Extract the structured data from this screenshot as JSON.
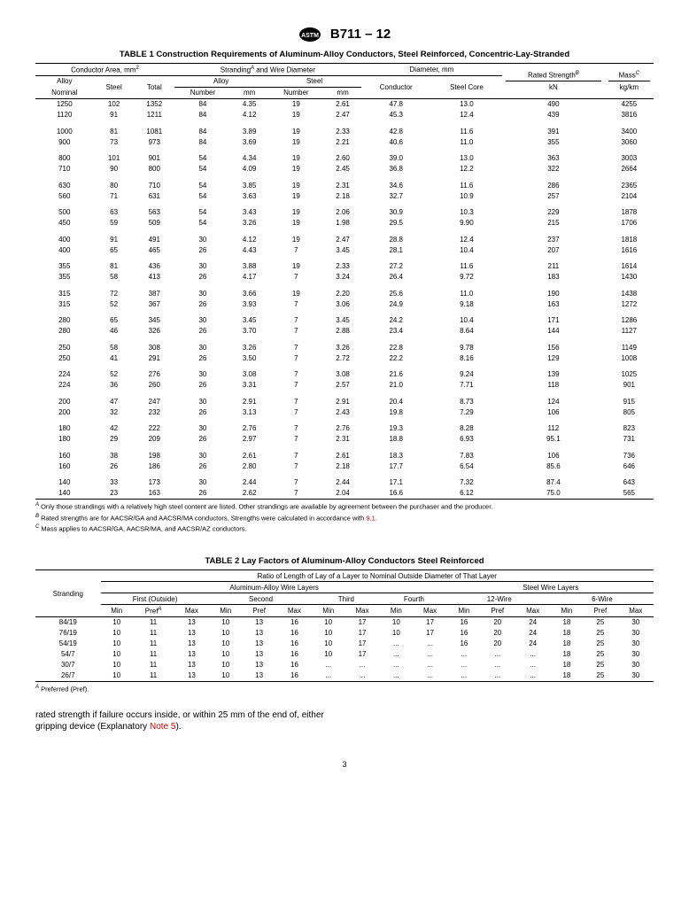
{
  "header": {
    "std": "B711 – 12"
  },
  "t1": {
    "title": "TABLE 1 Construction Requirements of Aluminum-Alloy Conductors, Steel Reinforced, Concentric-Lay-Stranded",
    "h": {
      "ca": "Conductor Area, mm",
      "swd": "Stranding",
      "swd2": " and Wire Diameter",
      "dia": "Diameter, mm",
      "rs": "Rated Strength",
      "mass": "Mass",
      "alloy": "Alloy",
      "steel": "Steel",
      "total": "Total",
      "nom": "Nominal",
      "num": "Number",
      "mm": "mm",
      "cond": "Conductor",
      "sc": "Steel Core",
      "kn": "kN",
      "kgkm": "kg/km"
    },
    "groups": [
      [
        [
          "1250",
          "102",
          "1352",
          "84",
          "4.35",
          "19",
          "2.61",
          "47.8",
          "13.0",
          "490",
          "4255"
        ],
        [
          "1120",
          "91",
          "1211",
          "84",
          "4.12",
          "19",
          "2.47",
          "45.3",
          "12.4",
          "439",
          "3816"
        ]
      ],
      [
        [
          "1000",
          "81",
          "1081",
          "84",
          "3.89",
          "19",
          "2.33",
          "42.8",
          "11.6",
          "391",
          "3400"
        ],
        [
          "900",
          "73",
          "973",
          "84",
          "3.69",
          "19",
          "2.21",
          "40.6",
          "11.0",
          "355",
          "3060"
        ]
      ],
      [
        [
          "800",
          "101",
          "901",
          "54",
          "4.34",
          "19",
          "2.60",
          "39.0",
          "13.0",
          "363",
          "3003"
        ],
        [
          "710",
          "90",
          "800",
          "54",
          "4.09",
          "19",
          "2.45",
          "36.8",
          "12.2",
          "322",
          "2664"
        ]
      ],
      [
        [
          "630",
          "80",
          "710",
          "54",
          "3.85",
          "19",
          "2.31",
          "34.6",
          "11.6",
          "286",
          "2365"
        ],
        [
          "560",
          "71",
          "631",
          "54",
          "3.63",
          "19",
          "2.18",
          "32.7",
          "10.9",
          "257",
          "2104"
        ]
      ],
      [
        [
          "500",
          "63",
          "563",
          "54",
          "3.43",
          "19",
          "2.06",
          "30.9",
          "10.3",
          "229",
          "1878"
        ],
        [
          "450",
          "59",
          "509",
          "54",
          "3.26",
          "19",
          "1.98",
          "29.5",
          "9.90",
          "215",
          "1706"
        ]
      ],
      [
        [
          "400",
          "91",
          "491",
          "30",
          "4.12",
          "19",
          "2.47",
          "28.8",
          "12.4",
          "237",
          "1818"
        ],
        [
          "400",
          "65",
          "465",
          "26",
          "4.43",
          "7",
          "3.45",
          "28.1",
          "10.4",
          "207",
          "1616"
        ]
      ],
      [
        [
          "355",
          "81",
          "436",
          "30",
          "3.88",
          "19",
          "2.33",
          "27.2",
          "11.6",
          "211",
          "1614"
        ],
        [
          "355",
          "58",
          "413",
          "26",
          "4.17",
          "7",
          "3.24",
          "26.4",
          "9.72",
          "183",
          "1430"
        ]
      ],
      [
        [
          "315",
          "72",
          "387",
          "30",
          "3.66",
          "19",
          "2.20",
          "25.6",
          "11.0",
          "190",
          "1438"
        ],
        [
          "315",
          "52",
          "367",
          "26",
          "3.93",
          "7",
          "3.06",
          "24.9",
          "9.18",
          "163",
          "1272"
        ]
      ],
      [
        [
          "280",
          "65",
          "345",
          "30",
          "3.45",
          "7",
          "3.45",
          "24.2",
          "10.4",
          "171",
          "1286"
        ],
        [
          "280",
          "46",
          "326",
          "26",
          "3.70",
          "7",
          "2.88",
          "23.4",
          "8.64",
          "144",
          "1127"
        ]
      ],
      [
        [
          "250",
          "58",
          "308",
          "30",
          "3.26",
          "7",
          "3.26",
          "22.8",
          "9.78",
          "156",
          "1149"
        ],
        [
          "250",
          "41",
          "291",
          "26",
          "3.50",
          "7",
          "2.72",
          "22.2",
          "8.16",
          "129",
          "1008"
        ]
      ],
      [
        [
          "224",
          "52",
          "276",
          "30",
          "3.08",
          "7",
          "3.08",
          "21.6",
          "9.24",
          "139",
          "1025"
        ],
        [
          "224",
          "36",
          "260",
          "26",
          "3.31",
          "7",
          "2.57",
          "21.0",
          "7.71",
          "118",
          "901"
        ]
      ],
      [
        [
          "200",
          "47",
          "247",
          "30",
          "2.91",
          "7",
          "2.91",
          "20.4",
          "8.73",
          "124",
          "915"
        ],
        [
          "200",
          "32",
          "232",
          "26",
          "3.13",
          "7",
          "2.43",
          "19.8",
          "7.29",
          "106",
          "805"
        ]
      ],
      [
        [
          "180",
          "42",
          "222",
          "30",
          "2.76",
          "7",
          "2.76",
          "19.3",
          "8.28",
          "112",
          "823"
        ],
        [
          "180",
          "29",
          "209",
          "26",
          "2.97",
          "7",
          "2.31",
          "18.8",
          "6.93",
          "95.1",
          "731"
        ]
      ],
      [
        [
          "160",
          "38",
          "198",
          "30",
          "2.61",
          "7",
          "2.61",
          "18.3",
          "7.83",
          "106",
          "736"
        ],
        [
          "160",
          "26",
          "186",
          "26",
          "2.80",
          "7",
          "2.18",
          "17.7",
          "6.54",
          "85.6",
          "646"
        ]
      ],
      [
        [
          "140",
          "33",
          "173",
          "30",
          "2.44",
          "7",
          "2.44",
          "17.1",
          "7.32",
          "87.4",
          "643"
        ],
        [
          "140",
          "23",
          "163",
          "26",
          "2.62",
          "7",
          "2.04",
          "16.6",
          "6.12",
          "75.0",
          "565"
        ]
      ]
    ],
    "fn": {
      "a": " Only those strandings with a relatively high steel content are listed. Other strandings are available by agreement between the purchaser and the producer.",
      "b": " Rated strengths are for AACSR/GA and AACSR/MA conductors. Strengths were calculated in accordance with ",
      "bref": "9.1",
      "bend": ".",
      "c": " Mass applies to AACSR/GA, AACSR/MA, and AACSR/AZ conductors."
    }
  },
  "t2": {
    "title": "TABLE 2 Lay Factors of Aluminum-Alloy Conductors Steel Reinforced",
    "h": {
      "str": "Stranding",
      "ratio": "Ratio of Length of Lay of a Layer to Nominal Outside Diameter of That Layer",
      "aawl": "Aluminum-Alloy Wire Layers",
      "swl": "Steel Wire Layers",
      "first": "First (Outside)",
      "second": "Second",
      "third": "Third",
      "fourth": "Fourth",
      "w12": "12-Wire",
      "w6": "6-Wire",
      "min": "Min",
      "pref": "Pref",
      "max": "Max"
    },
    "rows": [
      [
        "84/19",
        "10",
        "11",
        "13",
        "10",
        "13",
        "16",
        "10",
        "17",
        "10",
        "17",
        "16",
        "20",
        "24",
        "18",
        "25",
        "30"
      ],
      [
        "76/19",
        "10",
        "11",
        "13",
        "10",
        "13",
        "16",
        "10",
        "17",
        "10",
        "17",
        "16",
        "20",
        "24",
        "18",
        "25",
        "30"
      ],
      [
        "54/19",
        "10",
        "11",
        "13",
        "10",
        "13",
        "16",
        "10",
        "17",
        "...",
        "...",
        "16",
        "20",
        "24",
        "18",
        "25",
        "30"
      ],
      [
        "54/7",
        "10",
        "11",
        "13",
        "10",
        "13",
        "16",
        "10",
        "17",
        "...",
        "...",
        "...",
        "...",
        "...",
        "18",
        "25",
        "30"
      ],
      [
        "30/7",
        "10",
        "11",
        "13",
        "10",
        "13",
        "16",
        "...",
        "...",
        "...",
        "...",
        "...",
        "...",
        "...",
        "18",
        "25",
        "30"
      ],
      [
        "26/7",
        "10",
        "11",
        "13",
        "10",
        "13",
        "16",
        "...",
        "...",
        "...",
        "...",
        "...",
        "...",
        "...",
        "18",
        "25",
        "30"
      ]
    ],
    "fn": " Preferred (Pref)."
  },
  "para": {
    "t1": "rated strength if failure occurs inside, or within 25 mm of the end of, either gripping device (Explanatory ",
    "ref": "Note 5",
    "t2": ")."
  },
  "page": "3"
}
